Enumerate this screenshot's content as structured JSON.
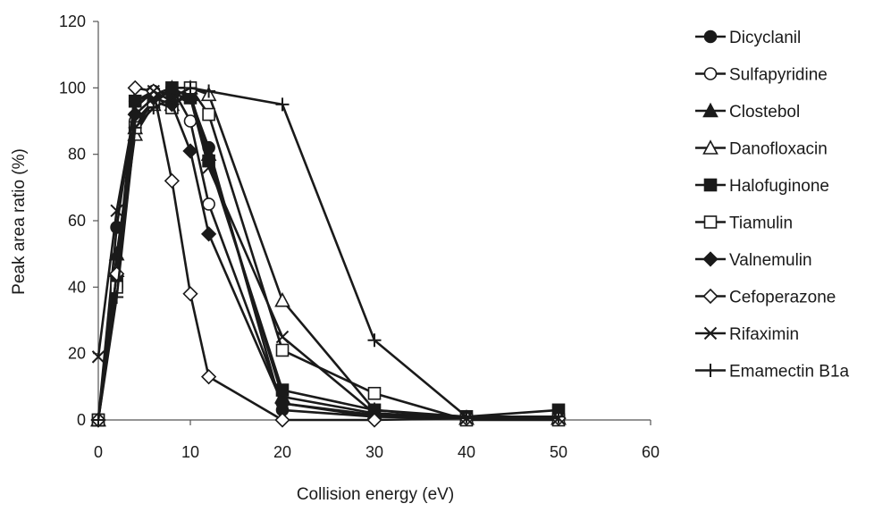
{
  "chart_data": {
    "type": "line",
    "title": "",
    "xlabel": "Collision energy (eV)",
    "ylabel": "Peak area ratio (%)",
    "xlim": [
      0,
      60
    ],
    "ylim": [
      0,
      120
    ],
    "x_ticks": [
      0,
      10,
      20,
      30,
      40,
      50,
      60
    ],
    "y_ticks": [
      0,
      20,
      40,
      60,
      80,
      100,
      120
    ],
    "grid": false,
    "legend_position": "right",
    "series": [
      {
        "name": "Dicyclanil",
        "marker": "circle-filled",
        "color": "#1a1a1a",
        "x": [
          0,
          2,
          4,
          6,
          8,
          10,
          12,
          20,
          30,
          40,
          50
        ],
        "y": [
          0,
          58,
          96,
          99,
          98,
          97,
          82,
          3,
          1,
          0.5,
          0.5
        ]
      },
      {
        "name": "Sulfapyridine",
        "marker": "circle-open",
        "color": "#1a1a1a",
        "x": [
          0,
          2,
          4,
          6,
          8,
          10,
          12,
          20,
          30,
          40,
          50
        ],
        "y": [
          0,
          40,
          90,
          96,
          100,
          90,
          65,
          5,
          1.5,
          0.5,
          0.5
        ]
      },
      {
        "name": "Clostebol",
        "marker": "triangle-filled",
        "color": "#1a1a1a",
        "x": [
          0,
          2,
          4,
          6,
          8,
          10,
          12,
          20,
          30,
          40,
          50
        ],
        "y": [
          0,
          50,
          88,
          97,
          95,
          98,
          80,
          7,
          2,
          0.5,
          0.5
        ]
      },
      {
        "name": "Danofloxacin",
        "marker": "triangle-open",
        "color": "#1a1a1a",
        "x": [
          0,
          2,
          4,
          6,
          8,
          10,
          12,
          20,
          30,
          40,
          50
        ],
        "y": [
          0,
          45,
          86,
          95,
          100,
          100,
          98,
          36,
          3,
          0.5,
          0.5
        ]
      },
      {
        "name": "Halofuginone",
        "marker": "square-filled",
        "color": "#1a1a1a",
        "x": [
          0,
          2,
          4,
          6,
          8,
          10,
          12,
          20,
          30,
          40,
          50
        ],
        "y": [
          0,
          42,
          96,
          98,
          100,
          97,
          78,
          9,
          3,
          1,
          3
        ]
      },
      {
        "name": "Tiamulin",
        "marker": "square-open",
        "color": "#1a1a1a",
        "x": [
          0,
          2,
          4,
          6,
          8,
          10,
          12,
          20,
          30,
          40,
          50
        ],
        "y": [
          0,
          40,
          88,
          96,
          94,
          100,
          92,
          21,
          8,
          0,
          0
        ]
      },
      {
        "name": "Valnemulin",
        "marker": "diamond-filled",
        "color": "#1a1a1a",
        "x": [
          0,
          2,
          4,
          6,
          8,
          10,
          12,
          20,
          30,
          40,
          50
        ],
        "y": [
          0,
          44,
          92,
          97,
          95,
          81,
          56,
          5,
          1,
          0.5,
          0.5
        ]
      },
      {
        "name": "Cefoperazone",
        "marker": "diamond-open",
        "color": "#1a1a1a",
        "x": [
          0,
          2,
          4,
          6,
          8,
          10,
          12,
          20,
          30,
          40,
          50
        ],
        "y": [
          0,
          44,
          100,
          99,
          72,
          38,
          13,
          0,
          0,
          0.5,
          0.5
        ]
      },
      {
        "name": "Rifaximin",
        "marker": "x",
        "color": "#1a1a1a",
        "x": [
          0,
          2,
          4,
          6,
          8,
          10,
          12,
          20,
          30,
          40,
          50
        ],
        "y": [
          19,
          63,
          94,
          99,
          96,
          97,
          76,
          25,
          2,
          0.5,
          0.5
        ]
      },
      {
        "name": "Emamectin B1a",
        "marker": "plus",
        "color": "#1a1a1a",
        "x": [
          0,
          2,
          4,
          6,
          8,
          10,
          12,
          20,
          30,
          40,
          50
        ],
        "y": [
          0,
          37,
          88,
          94,
          97,
          100,
          99,
          95,
          24,
          1,
          1
        ]
      }
    ]
  }
}
